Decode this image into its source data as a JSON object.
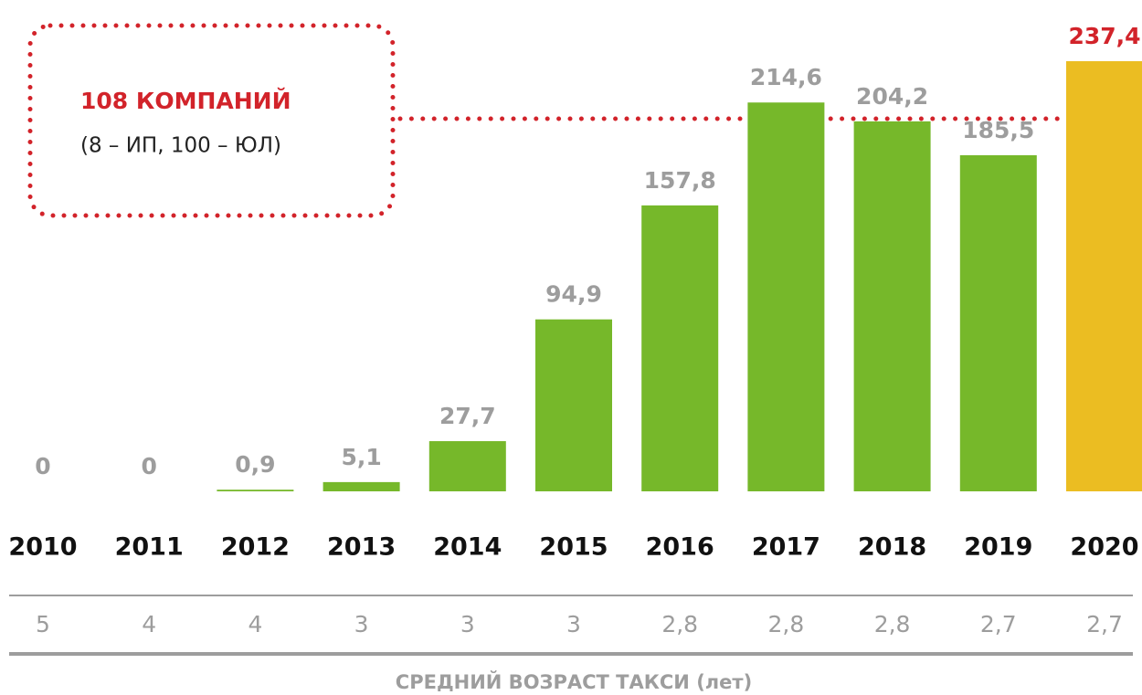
{
  "chart_data": {
    "type": "bar",
    "categories": [
      "2010",
      "2011",
      "2012",
      "2013",
      "2014",
      "2015",
      "2016",
      "2017",
      "2018",
      "2019",
      "2020"
    ],
    "values": [
      0,
      0,
      0.9,
      5.1,
      27.7,
      94.9,
      157.8,
      214.6,
      204.2,
      185.5,
      237.4
    ],
    "value_labels": [
      "0",
      "0",
      "0,9",
      "5,1",
      "27,7",
      "94,9",
      "157,8",
      "214,6",
      "204,2",
      "185,5",
      "237,4"
    ],
    "colors": [
      "#76b82a",
      "#76b82a",
      "#76b82a",
      "#76b82a",
      "#76b82a",
      "#76b82a",
      "#76b82a",
      "#76b82a",
      "#76b82a",
      "#76b82a",
      "#ebbd22"
    ],
    "label_colors": [
      "#9d9d9d",
      "#9d9d9d",
      "#9d9d9d",
      "#9d9d9d",
      "#9d9d9d",
      "#9d9d9d",
      "#9d9d9d",
      "#9d9d9d",
      "#9d9d9d",
      "#9d9d9d",
      "#d2232a"
    ],
    "annotation": {
      "title": "108 КОМПАНИЙ",
      "text": "(8 – ИП, 100 – ЮЛ)"
    },
    "age": {
      "title": "СРЕДНИЙ ВОЗРАСТ ТАКСИ (лет)",
      "values": [
        5,
        4,
        4,
        3,
        3,
        3,
        2.8,
        2.8,
        2.8,
        2.7,
        2.7
      ],
      "value_labels": [
        "5",
        "4",
        "4",
        "3",
        "3",
        "3",
        "2,8",
        "2,8",
        "2,8",
        "2,7",
        "2,7"
      ]
    }
  }
}
